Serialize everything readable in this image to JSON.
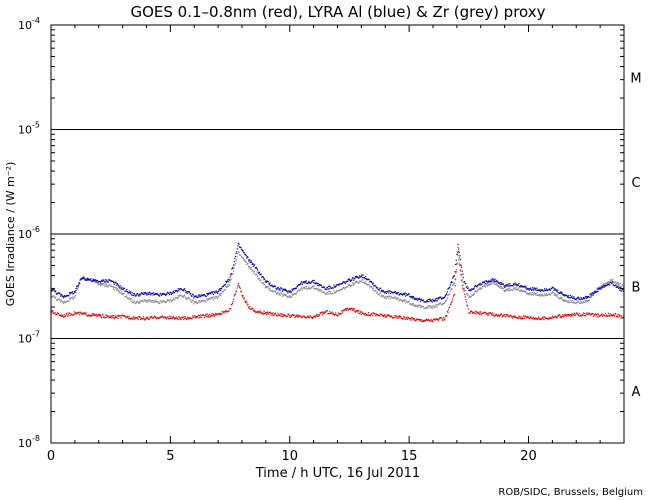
{
  "chart_data": {
    "type": "scatter",
    "title": "GOES 0.1–0.8nm (red), LYRA Al (blue) & Zr (grey) proxy",
    "xlabel": "Time / h UTC, 16 Jul 2011",
    "ylabel": "GOES Irradiance / (W m⁻²)",
    "credit": "ROB/SIDC, Brussels, Belgium",
    "x_range": [
      0,
      24
    ],
    "y_range_log10": [
      -8,
      -4
    ],
    "y_scale": "log",
    "x_ticks": [
      "0",
      "5",
      "10",
      "15",
      "20"
    ],
    "x_tick_values": [
      0,
      5,
      10,
      15,
      20
    ],
    "y_ticks": [
      {
        "base": "10",
        "exp": "-4",
        "log": -4
      },
      {
        "base": "10",
        "exp": "-5",
        "log": -5
      },
      {
        "base": "10",
        "exp": "-6",
        "log": -6
      },
      {
        "base": "10",
        "exp": "-7",
        "log": -7
      },
      {
        "base": "10",
        "exp": "-8",
        "log": -8
      }
    ],
    "flare_classes": [
      {
        "label": "M",
        "log_center": -4.5
      },
      {
        "label": "C",
        "log_center": -5.5
      },
      {
        "label": "B",
        "log_center": -6.5
      },
      {
        "label": "A",
        "log_center": -7.5
      }
    ],
    "class_lines_log10": [
      -5,
      -6,
      -7
    ],
    "colors": {
      "goes": "#dd0000",
      "lyra_al": "#0000aa",
      "lyra_zr": "#888888"
    },
    "series": [
      {
        "id": "goes",
        "x": [
          0,
          0.5,
          1,
          1.5,
          2,
          2.5,
          3,
          3.5,
          4,
          4.5,
          5,
          5.5,
          6,
          6.5,
          7,
          7.5,
          7.7,
          7.85,
          8,
          8.3,
          8.6,
          9,
          9.5,
          10,
          10.5,
          11,
          11.5,
          12,
          12.5,
          13,
          13.5,
          14,
          14.5,
          15,
          15.5,
          16,
          16.5,
          16.9,
          17.05,
          17.2,
          17.5,
          18,
          18.5,
          19,
          19.5,
          20,
          20.5,
          21,
          21.5,
          22,
          22.5,
          23,
          23.5,
          24
        ],
        "y": [
          1.8e-07,
          1.65e-07,
          1.75e-07,
          1.7e-07,
          1.65e-07,
          1.6e-07,
          1.62e-07,
          1.58e-07,
          1.55e-07,
          1.6e-07,
          1.58e-07,
          1.55e-07,
          1.6e-07,
          1.65e-07,
          1.7e-07,
          1.9e-07,
          2.6e-07,
          3.3e-07,
          2.6e-07,
          2e-07,
          1.8e-07,
          1.75e-07,
          1.7e-07,
          1.65e-07,
          1.6e-07,
          1.6e-07,
          1.8e-07,
          1.7e-07,
          1.95e-07,
          1.75e-07,
          1.7e-07,
          1.65e-07,
          1.6e-07,
          1.55e-07,
          1.5e-07,
          1.5e-07,
          1.55e-07,
          2.6e-07,
          7.7e-07,
          3.5e-07,
          1.8e-07,
          1.75e-07,
          1.7e-07,
          1.65e-07,
          1.6e-07,
          1.6e-07,
          1.55e-07,
          1.6e-07,
          1.65e-07,
          1.7e-07,
          1.7e-07,
          1.65e-07,
          1.7e-07,
          1.6e-07
        ]
      },
      {
        "id": "lyra_al",
        "x": [
          0,
          0.5,
          1,
          1.3,
          1.5,
          2,
          2.5,
          3,
          3.5,
          4,
          4.5,
          5,
          5.5,
          6,
          6.5,
          7,
          7.5,
          7.85,
          8.2,
          8.5,
          9,
          9.5,
          10,
          10.5,
          11,
          11.5,
          12,
          12.5,
          13,
          13.3,
          13.7,
          14,
          14.5,
          15,
          15.5,
          16,
          16.5,
          16.9,
          17.05,
          17.3,
          17.5,
          18,
          18.5,
          19,
          19.5,
          20,
          20.5,
          21,
          21.5,
          22,
          22.5,
          23,
          23.5,
          24
        ],
        "y": [
          3e-07,
          2.5e-07,
          2.8e-07,
          3.8e-07,
          3.7e-07,
          3.5e-07,
          3.6e-07,
          3e-07,
          2.6e-07,
          2.7e-07,
          2.6e-07,
          2.7e-07,
          3e-07,
          2.5e-07,
          2.6e-07,
          2.8e-07,
          3.8e-07,
          7.9e-07,
          6e-07,
          5e-07,
          3.5e-07,
          3e-07,
          2.8e-07,
          3.4e-07,
          3.5e-07,
          3e-07,
          3.2e-07,
          3.6e-07,
          4e-07,
          3.7e-07,
          3e-07,
          2.8e-07,
          2.7e-07,
          2.6e-07,
          2.3e-07,
          2.3e-07,
          2.5e-07,
          4e-07,
          7.7e-07,
          3.5e-07,
          2.9e-07,
          3.3e-07,
          3.7e-07,
          3.2e-07,
          3.3e-07,
          3e-07,
          2.9e-07,
          3e-07,
          2.6e-07,
          2.4e-07,
          2.5e-07,
          3e-07,
          3.4e-07,
          2.8e-07
        ]
      },
      {
        "id": "lyra_zr",
        "x": [
          0,
          0.5,
          1,
          1.3,
          1.5,
          2,
          2.5,
          3,
          3.5,
          4,
          4.5,
          5,
          5.5,
          6,
          6.5,
          7,
          7.5,
          7.85,
          8.2,
          8.5,
          9,
          9.5,
          10,
          10.5,
          11,
          11.5,
          12,
          12.5,
          13,
          13.3,
          13.7,
          14,
          14.5,
          15,
          15.5,
          16,
          16.5,
          16.9,
          17.05,
          17.3,
          17.5,
          18,
          18.5,
          19,
          19.5,
          20,
          20.5,
          21,
          21.5,
          22,
          22.5,
          23,
          23.5,
          24
        ],
        "y": [
          2.6e-07,
          2.2e-07,
          2.5e-07,
          3.9e-07,
          3.8e-07,
          3.3e-07,
          3.2e-07,
          2.7e-07,
          2.2e-07,
          2.3e-07,
          2.2e-07,
          2.3e-07,
          2.6e-07,
          2.2e-07,
          2.3e-07,
          2.5e-07,
          3.4e-07,
          6.6e-07,
          5.2e-07,
          4.3e-07,
          3.1e-07,
          2.7e-07,
          2.5e-07,
          3e-07,
          3.1e-07,
          2.7e-07,
          2.8e-07,
          3.2e-07,
          3.6e-07,
          3.3e-07,
          2.7e-07,
          2.5e-07,
          2.4e-07,
          2.2e-07,
          2e-07,
          2e-07,
          2.2e-07,
          3.4e-07,
          6e-07,
          3e-07,
          2.5e-07,
          3e-07,
          3.5e-07,
          2.9e-07,
          3e-07,
          2.7e-07,
          2.6e-07,
          2.7e-07,
          2.3e-07,
          2.2e-07,
          2.3e-07,
          3.1e-07,
          3.6e-07,
          3.1e-07
        ]
      }
    ]
  }
}
